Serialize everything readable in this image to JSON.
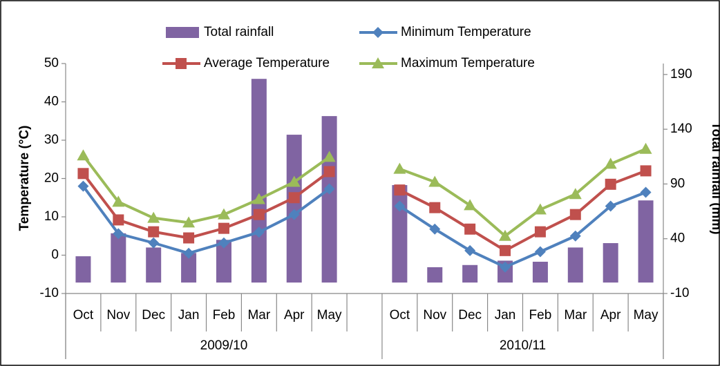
{
  "chart_data": {
    "type": "combo",
    "y_label": "Temperature (°C)",
    "y2_label": "Total rainfall (mm)",
    "categories": [
      "Oct",
      "Nov",
      "Dec",
      "Jan",
      "Feb",
      "Mar",
      "Apr",
      "May",
      null,
      "Oct",
      "Nov",
      "Dec",
      "Jan",
      "Feb",
      "Mar",
      "Apr",
      "May"
    ],
    "category_groups": [
      "2009/10",
      "2010/11"
    ],
    "ylim": [
      -10,
      50
    ],
    "yticks": [
      -10,
      0,
      10,
      20,
      30,
      40,
      50
    ],
    "y2lim": [
      -10,
      200
    ],
    "y2ticks": [
      -10,
      40,
      90,
      140,
      190
    ],
    "series": [
      {
        "name": "Total rainfall",
        "type": "bar",
        "axis": "y2",
        "color": "#8064a2",
        "values": [
          24,
          45,
          32,
          27,
          39,
          186,
          135,
          152,
          null,
          89,
          14,
          16,
          20,
          19,
          32,
          36,
          75
        ]
      },
      {
        "name": "Minimum Temperature",
        "type": "line",
        "marker": "diamond",
        "color": "#4f81bd",
        "values": [
          18,
          5.6,
          3.2,
          0.5,
          3.2,
          6,
          10.6,
          17.3,
          null,
          12.8,
          6.8,
          1.2,
          -3.1,
          0.9,
          5,
          12.8,
          16.4
        ]
      },
      {
        "name": "Average Temperature",
        "type": "line",
        "marker": "square",
        "color": "#c0504d",
        "values": [
          21.3,
          9.2,
          6.1,
          4.5,
          7,
          10.6,
          15,
          21.8,
          null,
          17,
          12.4,
          6.8,
          1.2,
          6.1,
          10.6,
          18.5,
          22
        ]
      },
      {
        "name": "Maximum Temperature",
        "type": "line",
        "marker": "triangle",
        "color": "#9bbb59",
        "values": [
          26,
          13.9,
          9.7,
          8.5,
          10.6,
          14.6,
          19.1,
          25.6,
          null,
          22.5,
          19.1,
          13,
          5,
          11.9,
          15.9,
          23.8,
          27.7
        ]
      }
    ]
  }
}
